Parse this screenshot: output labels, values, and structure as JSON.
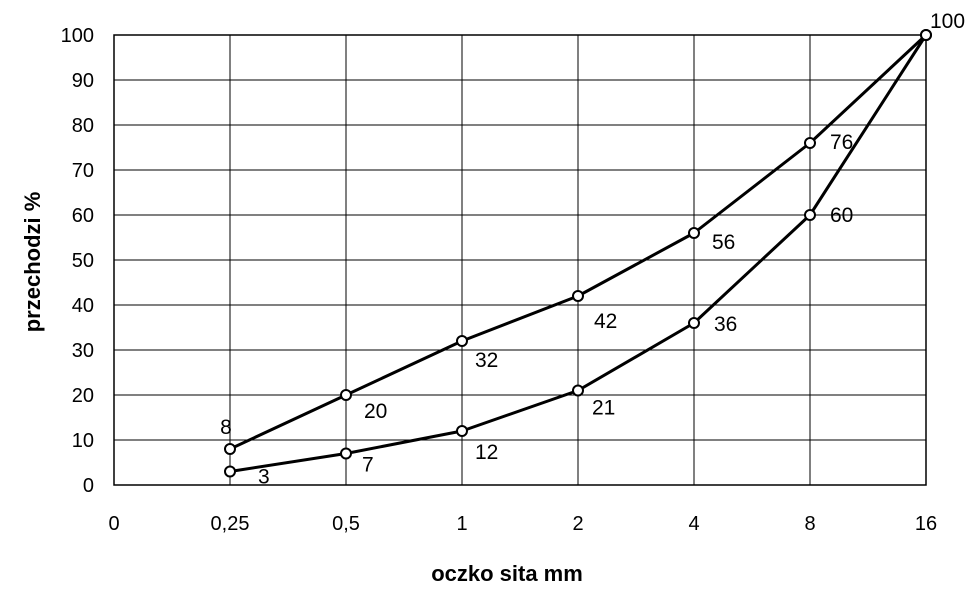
{
  "chart_data": {
    "type": "line",
    "title": "",
    "xlabel": "oczko sita mm",
    "ylabel": "przechodzi %",
    "categories": [
      "0",
      "0,25",
      "0,5",
      "1",
      "2",
      "4",
      "8",
      "16"
    ],
    "ylim": [
      0,
      100
    ],
    "yticks": [
      "0",
      "10",
      "20",
      "30",
      "40",
      "50",
      "60",
      "70",
      "80",
      "90",
      "100"
    ],
    "grid": true,
    "legend": "none",
    "series": [
      {
        "values": [
          null,
          8,
          20,
          32,
          42,
          56,
          76,
          100
        ],
        "labels": [
          null,
          "8",
          "20",
          "32",
          "42",
          "56",
          "76",
          "100"
        ]
      },
      {
        "values": [
          null,
          3,
          7,
          12,
          21,
          36,
          60,
          100
        ],
        "labels": [
          null,
          "3",
          "7",
          "12",
          "21",
          "36",
          "60",
          null
        ]
      }
    ],
    "colors": {
      "line": "#000000",
      "marker_fill": "#ffffff",
      "grid": "#000000"
    }
  }
}
